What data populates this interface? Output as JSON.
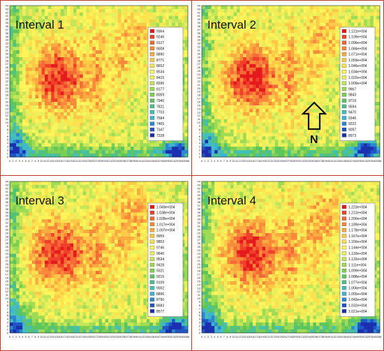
{
  "chart_data": [
    {
      "type": "heatmap",
      "title": "Interval 1",
      "x_ticks": [
        "0",
        "1",
        "2",
        "3",
        "4",
        "5",
        "6",
        "7",
        "8",
        "9",
        "10",
        "11",
        "12",
        "13",
        "14",
        "15",
        "16",
        "17",
        "18",
        "19",
        "20",
        "21",
        "22",
        "23",
        "24",
        "25",
        "26",
        "27",
        "28",
        "29",
        "30",
        "31",
        "32",
        "33",
        "34",
        "35",
        "36",
        "37",
        "38",
        "39",
        "40",
        "41",
        "42",
        "43",
        "44",
        "45",
        "46",
        "47",
        "48",
        "49",
        "50",
        "51",
        "52",
        "53",
        "54",
        "55",
        "56"
      ],
      "y_ticks": [
        "0",
        "1",
        "2",
        "3",
        "4",
        "5",
        "6",
        "7",
        "8",
        "9",
        "10",
        "11",
        "12",
        "13",
        "14",
        "15",
        "16",
        "17",
        "18",
        "19",
        "20",
        "21",
        "22",
        "23",
        "24",
        "25",
        "26",
        "27",
        "28",
        "29",
        "30",
        "31",
        "32",
        "33",
        "34",
        "35",
        "36",
        "37",
        "38",
        "39",
        "40",
        "41",
        "42",
        "43",
        "44"
      ],
      "xlim": [
        0,
        56
      ],
      "ylim": [
        0,
        44
      ],
      "legend_position": "right",
      "legend": [
        "9364",
        "9246",
        "9127",
        "9008",
        "8890",
        "8771",
        "8652",
        "8534",
        "8415",
        "8296",
        "8177",
        "8059",
        "7940",
        "7821",
        "7703",
        "7584",
        "7465",
        "7347",
        "7228"
      ],
      "colors": [
        "#e41a1c",
        "#f0402a",
        "#f56a36",
        "#f98a3c",
        "#fcab40",
        "#feca48",
        "#fde34f",
        "#fff45a",
        "#e9f05c",
        "#c6e65a",
        "#9fdb55",
        "#7ccf52",
        "#5cc55d",
        "#4cc08e",
        "#45c0b9",
        "#3fb2d6",
        "#2b86d3",
        "#1e56c4",
        "#1c2faf"
      ],
      "annotation": ""
    },
    {
      "type": "heatmap",
      "title": "Interval 2",
      "x_ticks": [
        "0",
        "1",
        "2",
        "3",
        "4",
        "5",
        "6",
        "7",
        "8",
        "9",
        "10",
        "11",
        "12",
        "13",
        "14",
        "15",
        "16",
        "17",
        "18",
        "19",
        "20",
        "21",
        "22",
        "23",
        "24",
        "25",
        "26",
        "27",
        "28",
        "29",
        "30",
        "31",
        "32",
        "33",
        "34",
        "35",
        "36",
        "37",
        "38",
        "39",
        "40",
        "41",
        "42",
        "43",
        "44",
        "45",
        "46",
        "47",
        "48",
        "49",
        "50",
        "51",
        "52",
        "53",
        "54",
        "55",
        "56"
      ],
      "y_ticks": [
        "0",
        "1",
        "2",
        "3",
        "4",
        "5",
        "6",
        "7",
        "8",
        "9",
        "10",
        "11",
        "12",
        "13",
        "14",
        "15",
        "16",
        "17",
        "18",
        "19",
        "20",
        "21",
        "22",
        "23",
        "24",
        "25",
        "26",
        "27",
        "28",
        "29",
        "30",
        "31",
        "32",
        "33",
        "34",
        "35",
        "36",
        "37",
        "38",
        "39",
        "40",
        "41",
        "42",
        "43",
        "44"
      ],
      "xlim": [
        0,
        56
      ],
      "ylim": [
        0,
        44
      ],
      "legend_position": "right",
      "legend": [
        "1.121e+004",
        "1.109e+004",
        "1.096e+004",
        "1.084e+004",
        "1.071e+004",
        "1.059e+004",
        "1.046e+004",
        "1.034e+004",
        "1.022e+004",
        "1.009e+004",
        "9967",
        "9843",
        "9719",
        "9594",
        "9470",
        "9346",
        "9222",
        "9097",
        "8973"
      ],
      "colors": [
        "#e41a1c",
        "#f0402a",
        "#f56a36",
        "#f98a3c",
        "#fcab40",
        "#feca48",
        "#fde34f",
        "#fff45a",
        "#e9f05c",
        "#c6e65a",
        "#9fdb55",
        "#7ccf52",
        "#5cc55d",
        "#4cc08e",
        "#45c0b9",
        "#3fb2d6",
        "#2b86d3",
        "#1e56c4",
        "#1c2faf"
      ],
      "annotation": "N"
    },
    {
      "type": "heatmap",
      "title": "Interval 3",
      "x_ticks": [
        "0",
        "1",
        "2",
        "3",
        "4",
        "5",
        "6",
        "7",
        "8",
        "9",
        "10",
        "11",
        "12",
        "13",
        "14",
        "15",
        "16",
        "17",
        "18",
        "19",
        "20",
        "21",
        "22",
        "23",
        "24",
        "25",
        "26",
        "27",
        "28",
        "29",
        "30",
        "31",
        "32",
        "33",
        "34",
        "35",
        "36",
        "37",
        "38",
        "39",
        "40",
        "41",
        "42",
        "43",
        "44",
        "45",
        "46",
        "47",
        "48",
        "49",
        "50",
        "51",
        "52",
        "53",
        "54",
        "55",
        "56"
      ],
      "y_ticks": [
        "0",
        "1",
        "2",
        "3",
        "4",
        "5",
        "6",
        "7",
        "8",
        "9",
        "10",
        "11",
        "12",
        "13",
        "14",
        "15",
        "16",
        "17",
        "18",
        "19",
        "20",
        "21",
        "22",
        "23",
        "24",
        "25",
        "26",
        "27",
        "28",
        "29",
        "30",
        "31",
        "32",
        "33",
        "34",
        "35",
        "36",
        "37",
        "38",
        "39",
        "40",
        "41",
        "42",
        "43",
        "44"
      ],
      "xlim": [
        0,
        56
      ],
      "ylim": [
        0,
        44
      ],
      "legend_position": "right",
      "legend": [
        "1.049e+004",
        "1.038e+004",
        "1.028e+004",
        "1.017e+004",
        "1.007e+004",
        "9959",
        "9853",
        "9746",
        "9640",
        "9534",
        "9428",
        "9321",
        "9215",
        "9109",
        "9002",
        "8896",
        "8790",
        "8683",
        "8577"
      ],
      "colors": [
        "#e41a1c",
        "#f0402a",
        "#f56a36",
        "#f98a3c",
        "#fcab40",
        "#feca48",
        "#fde34f",
        "#fff45a",
        "#e9f05c",
        "#c6e65a",
        "#9fdb55",
        "#7ccf52",
        "#5cc55d",
        "#4cc08e",
        "#45c0b9",
        "#3fb2d6",
        "#2b86d3",
        "#1e56c4",
        "#1c2faf"
      ],
      "annotation": ""
    },
    {
      "type": "heatmap",
      "title": "Interval 4",
      "x_ticks": [
        "0",
        "1",
        "2",
        "3",
        "4",
        "5",
        "6",
        "7",
        "8",
        "9",
        "10",
        "11",
        "12",
        "13",
        "14",
        "15",
        "16",
        "17",
        "18",
        "19",
        "20",
        "21",
        "22",
        "23",
        "24",
        "25",
        "26",
        "27",
        "28",
        "29",
        "30",
        "31",
        "32",
        "33",
        "34",
        "35",
        "36",
        "37",
        "38",
        "39",
        "40",
        "41",
        "42",
        "43",
        "44",
        "45",
        "46",
        "47",
        "48",
        "49",
        "50",
        "51",
        "52",
        "53",
        "54",
        "55",
        "56"
      ],
      "y_ticks": [
        "0",
        "1",
        "2",
        "3",
        "4",
        "5",
        "6",
        "7",
        "8",
        "9",
        "10",
        "11",
        "12",
        "13",
        "14",
        "15",
        "16",
        "17",
        "18",
        "19",
        "20",
        "21",
        "22",
        "23",
        "24",
        "25",
        "26",
        "27",
        "28",
        "29",
        "30",
        "31",
        "32",
        "33",
        "34",
        "35",
        "36",
        "37",
        "38",
        "39",
        "40",
        "41",
        "42",
        "43",
        "44"
      ],
      "xlim": [
        0,
        56
      ],
      "ylim": [
        0,
        44
      ],
      "legend_position": "right",
      "legend": [
        "1.223e+004",
        "1.212e+004",
        "1.200e+004",
        "1.189e+004",
        "1.178e+004",
        "1.167e+004",
        "1.156e+004",
        "1.144e+004",
        "1.133e+004",
        "1.122e+004",
        "1.111e+004",
        "1.099e+004",
        "1.088e+004",
        "1.077e+004",
        "1.066e+004",
        "1.055e+004",
        "1.043e+004",
        "1.032e+004",
        "1.021e+004"
      ],
      "colors": [
        "#e41a1c",
        "#f0402a",
        "#f56a36",
        "#f98a3c",
        "#fcab40",
        "#feca48",
        "#fde34f",
        "#fff45a",
        "#e9f05c",
        "#c6e65a",
        "#9fdb55",
        "#7ccf52",
        "#5cc55d",
        "#4cc08e",
        "#45c0b9",
        "#3fb2d6",
        "#2b86d3",
        "#1e56c4",
        "#1c2faf"
      ],
      "annotation": ""
    }
  ]
}
